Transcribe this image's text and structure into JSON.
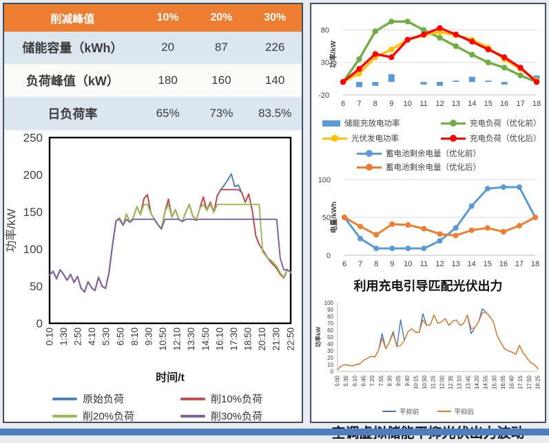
{
  "table": {
    "header": [
      "削减峰值",
      "10%",
      "20%",
      "30%"
    ],
    "rows": [
      [
        "储能容量（kWh）",
        "20",
        "87",
        "226"
      ],
      [
        "负荷峰值（kW）",
        "180",
        "160",
        "140"
      ],
      [
        "日负荷率",
        "65%",
        "73%",
        "83.5%"
      ]
    ],
    "header_bg": "#ED7D31",
    "row_alt_bg": "#DCE6EF",
    "row_bg": "#FBFBF8"
  },
  "captions": {
    "middle": "利用充电引导匹配光伏出力",
    "bottom": "空调虚拟储能平抑光伏出力波动"
  },
  "chart_data": [
    {
      "id": "load_profile",
      "type": "line",
      "ylabel": "功率/kW",
      "xlabel": "时间/t",
      "ylim": [
        0,
        250
      ],
      "yticks": [
        0,
        50,
        100,
        150,
        200,
        250
      ],
      "frame": "box",
      "x_tick_labels": [
        "0:10",
        "1:30",
        "2:50",
        "4:10",
        "5:30",
        "6:50",
        "8:10",
        "9:30",
        "10:50",
        "12:10",
        "13:30",
        "14:50",
        "16:10",
        "17:30",
        "18:50",
        "20:10",
        "21:30",
        "22:50"
      ],
      "series": [
        {
          "name": "原始负荷",
          "color": "#4F81BD",
          "values": [
            65,
            70,
            60,
            72,
            66,
            58,
            66,
            55,
            63,
            47,
            42,
            56,
            48,
            44,
            62,
            50,
            47,
            68,
            105,
            138,
            142,
            132,
            147,
            136,
            143,
            157,
            146,
            168,
            173,
            148,
            140,
            133,
            127,
            150,
            167,
            143,
            153,
            140,
            137,
            150,
            160,
            144,
            139,
            155,
            170,
            152,
            163,
            149,
            172,
            180,
            186,
            193,
            201,
            184,
            186,
            176,
            163,
            174,
            152,
            118,
            106,
            99,
            91,
            84,
            79,
            74,
            66,
            61,
            72,
            69
          ]
        },
        {
          "name": "削10%负荷",
          "color": "#C0504D",
          "values": [
            65,
            70,
            60,
            72,
            66,
            58,
            66,
            55,
            63,
            47,
            42,
            56,
            48,
            44,
            62,
            50,
            47,
            68,
            105,
            138,
            142,
            132,
            147,
            136,
            143,
            157,
            146,
            168,
            173,
            148,
            140,
            133,
            127,
            150,
            167,
            143,
            153,
            140,
            137,
            150,
            160,
            144,
            139,
            155,
            170,
            152,
            163,
            149,
            172,
            180,
            180,
            180,
            180,
            180,
            180,
            176,
            163,
            174,
            152,
            118,
            106,
            99,
            91,
            84,
            79,
            74,
            66,
            61,
            72,
            69
          ]
        },
        {
          "name": "削20%负荷",
          "color": "#9BBB59",
          "values": [
            65,
            70,
            60,
            72,
            66,
            58,
            66,
            55,
            63,
            47,
            42,
            56,
            48,
            44,
            62,
            50,
            47,
            68,
            105,
            138,
            142,
            132,
            147,
            136,
            143,
            157,
            146,
            160,
            160,
            148,
            140,
            133,
            127,
            150,
            160,
            143,
            153,
            140,
            137,
            150,
            160,
            144,
            139,
            155,
            160,
            152,
            160,
            149,
            160,
            160,
            160,
            160,
            160,
            160,
            160,
            160,
            160,
            160,
            160,
            160,
            160,
            96,
            90,
            86,
            82,
            77,
            68,
            62,
            73,
            68
          ]
        },
        {
          "name": "削30%负荷",
          "color": "#8064A2",
          "values": [
            65,
            70,
            60,
            72,
            66,
            58,
            66,
            55,
            63,
            47,
            42,
            56,
            48,
            44,
            62,
            50,
            47,
            68,
            105,
            138,
            140,
            132,
            140,
            136,
            140,
            140,
            140,
            140,
            140,
            140,
            140,
            133,
            127,
            140,
            140,
            140,
            140,
            140,
            137,
            140,
            140,
            140,
            139,
            140,
            140,
            140,
            140,
            140,
            140,
            140,
            140,
            140,
            140,
            140,
            140,
            140,
            140,
            140,
            140,
            140,
            140,
            140,
            140,
            140,
            140,
            140,
            88,
            72,
            72,
            69
          ]
        }
      ]
    },
    {
      "id": "ev_charging_power",
      "type": "combo",
      "ylabel": "功率/kW",
      "ylim": [
        -20,
        105
      ],
      "yticks": [
        -20,
        30,
        80
      ],
      "grid": [
        30,
        80
      ],
      "frame": "bottom",
      "categories": [
        "6",
        "7",
        "8",
        "9",
        "10",
        "11",
        "12",
        "13",
        "14",
        "15",
        "16",
        "17",
        "18"
      ],
      "series": [
        {
          "name": "储能充放电功率",
          "type": "bar",
          "color": "#5B9BD5",
          "values": [
            0,
            -8,
            -6,
            12,
            0,
            -4,
            -6,
            2,
            8,
            2,
            -4,
            0,
            10
          ]
        },
        {
          "name": "充电负荷（优化前）",
          "type": "line",
          "marker": true,
          "color": "#70AD47",
          "values": [
            0,
            35,
            78,
            93,
            93,
            80,
            68,
            55,
            42,
            30,
            22,
            10,
            0
          ]
        },
        {
          "name": "光伏发电功率",
          "type": "line",
          "marker": true,
          "color": "#FFC000",
          "values": [
            0,
            13,
            38,
            50,
            65,
            72,
            77,
            72,
            65,
            53,
            35,
            20,
            2
          ]
        },
        {
          "name": "充电负荷（优化后）",
          "type": "line",
          "marker": true,
          "color": "#FF0000",
          "values": [
            0,
            20,
            43,
            38,
            65,
            73,
            83,
            73,
            62,
            50,
            38,
            22,
            0
          ]
        }
      ]
    },
    {
      "id": "battery_energy",
      "type": "line",
      "ylabel": "电量/kWh",
      "ylim": [
        0,
        100
      ],
      "yticks": [
        0,
        50,
        100
      ],
      "grid": [
        50,
        100
      ],
      "frame": "bottom",
      "categories": [
        "6",
        "7",
        "8",
        "9",
        "10",
        "11",
        "12",
        "13",
        "14",
        "15",
        "16",
        "17",
        "18"
      ],
      "series": [
        {
          "name": "蓄电池剩余电量（优化前）",
          "type": "line",
          "marker": true,
          "color": "#5B9BD5",
          "values": [
            50,
            22,
            9,
            9,
            9,
            9,
            19,
            36,
            65,
            88,
            90,
            90,
            50
          ]
        },
        {
          "name": "蓄电池剩余电量（优化后）",
          "type": "line",
          "marker": true,
          "color": "#ED7D31",
          "values": [
            50,
            38,
            27,
            41,
            40,
            35,
            28,
            26,
            33,
            36,
            31,
            39,
            50
          ]
        }
      ]
    },
    {
      "id": "pv_smoothing",
      "type": "line",
      "ylabel": "功率kW",
      "ylim": [
        0,
        100
      ],
      "yticks": [
        0,
        10,
        20,
        30,
        40,
        50,
        60,
        70,
        80,
        90,
        100
      ],
      "frame": "both",
      "x_tick_labels": [
        "5:00",
        "5:35",
        "6:10",
        "6:45",
        "7:20",
        "7:55",
        "8:30",
        "9:05",
        "9:40",
        "10:15",
        "10:50",
        "11:25",
        "12:00",
        "12:35",
        "13:10",
        "13:45",
        "14:20",
        "14:55",
        "15:30",
        "16:05",
        "16:40",
        "17:15",
        "17:50",
        "18:25"
      ],
      "series": [
        {
          "name": "平抑前",
          "type": "line",
          "color": "#4472C4",
          "values": [
            3,
            8,
            10,
            9,
            8,
            10,
            11,
            16,
            19,
            22,
            21,
            30,
            55,
            33,
            43,
            58,
            36,
            75,
            45,
            58,
            62,
            57,
            57,
            84,
            67,
            68,
            82,
            70,
            72,
            77,
            67,
            73,
            75,
            67,
            70,
            82,
            55,
            64,
            72,
            91,
            86,
            80,
            72,
            52,
            42,
            33,
            30,
            28,
            25,
            38,
            27,
            20,
            13,
            10,
            4
          ]
        },
        {
          "name": "平抑后",
          "type": "line",
          "color": "#DD7C28",
          "values": [
            3,
            8,
            10,
            9,
            8,
            10,
            11,
            16,
            19,
            22,
            21,
            30,
            48,
            33,
            43,
            55,
            36,
            38,
            45,
            58,
            62,
            57,
            57,
            75,
            67,
            68,
            82,
            70,
            72,
            77,
            67,
            73,
            75,
            67,
            70,
            82,
            62,
            64,
            72,
            85,
            86,
            80,
            72,
            52,
            42,
            33,
            30,
            28,
            25,
            38,
            27,
            20,
            13,
            10,
            4
          ]
        }
      ]
    }
  ]
}
